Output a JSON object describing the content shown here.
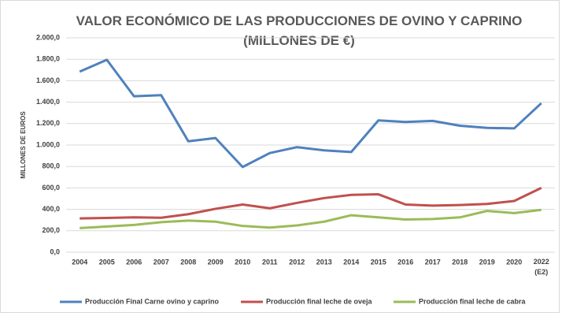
{
  "chart_data": {
    "type": "line",
    "title": "VALOR ECONÓMICO DE LAS PRODUCCIONES DE OVINO Y CAPRINO\n(MILLONES DE €)",
    "y_label": "MILLONES DE EUROS",
    "categories": [
      "2004",
      "2005",
      "2006",
      "2007",
      "2008",
      "2009",
      "2010",
      "2011",
      "2012",
      "2013",
      "2014",
      "2015",
      "2016",
      "2017",
      "2018",
      "2019",
      "2020",
      "2022\n(E2)"
    ],
    "series": [
      {
        "name": "Producción Final Carne ovino y caprino",
        "color": "#4f81bd",
        "values": [
          1685,
          1795,
          1455,
          1465,
          1035,
          1065,
          795,
          925,
          980,
          950,
          935,
          1230,
          1215,
          1225,
          1180,
          1160,
          1155,
          1390
        ]
      },
      {
        "name": "Producción final leche de oveja",
        "color": "#c0504d",
        "values": [
          315,
          320,
          325,
          322,
          355,
          405,
          445,
          410,
          460,
          505,
          535,
          540,
          445,
          435,
          440,
          450,
          478,
          600
        ]
      },
      {
        "name": "Producción final leche de cabra",
        "color": "#9bbb59",
        "values": [
          225,
          240,
          255,
          280,
          295,
          285,
          245,
          230,
          250,
          285,
          345,
          325,
          305,
          310,
          325,
          385,
          365,
          395
        ]
      }
    ],
    "ylim": [
      0,
      2000
    ],
    "yticks": [
      {
        "value": 0,
        "label": "0,0"
      },
      {
        "value": 200,
        "label": "200,0"
      },
      {
        "value": 400,
        "label": "400,0"
      },
      {
        "value": 600,
        "label": "600,0"
      },
      {
        "value": 800,
        "label": "800,0"
      },
      {
        "value": 1000,
        "label": "1.000,0"
      },
      {
        "value": 1200,
        "label": "1.200,0"
      },
      {
        "value": 1400,
        "label": "1.400,0"
      },
      {
        "value": 1600,
        "label": "1.600,0"
      },
      {
        "value": 1800,
        "label": "1.800,0"
      },
      {
        "value": 2000,
        "label": "2.000,0"
      }
    ],
    "grid": true,
    "legend": "bottom"
  }
}
